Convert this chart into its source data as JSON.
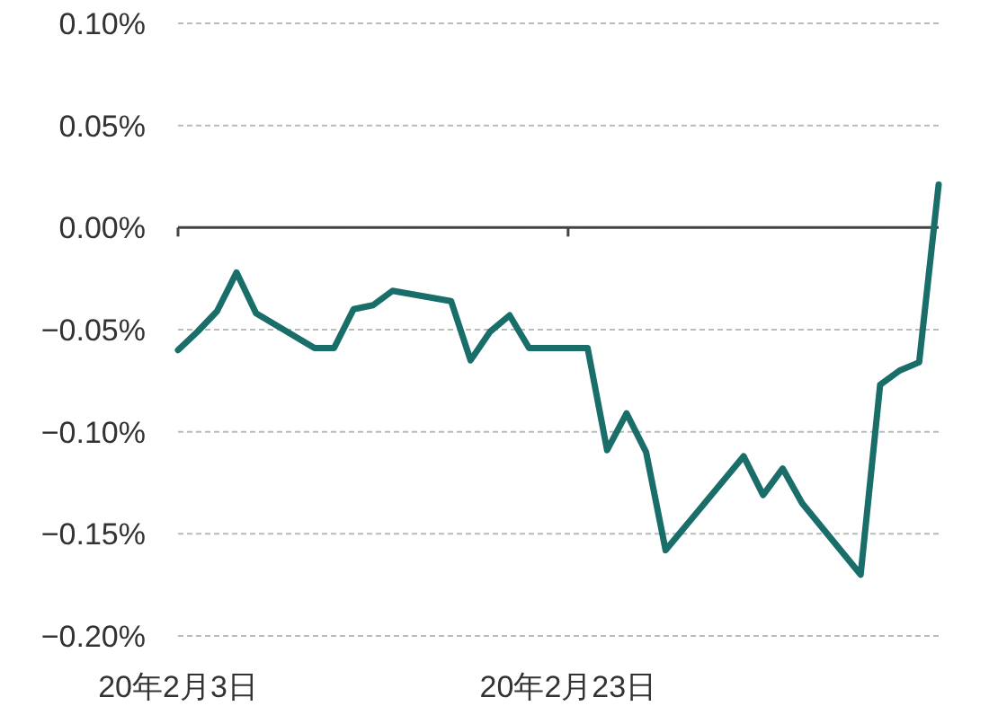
{
  "chart_data": {
    "type": "line",
    "x": [
      "--02-03",
      "--02-04",
      "--02-05",
      "--02-06",
      "--02-07",
      "--02-10",
      "--02-11",
      "--02-12",
      "--02-13",
      "--02-14",
      "--02-17",
      "--02-18",
      "--02-19",
      "--02-20",
      "--02-21",
      "--02-24",
      "--02-25",
      "--02-26",
      "--02-27",
      "--02-28",
      "--03-04",
      "--03-05",
      "--03-06",
      "--03-07",
      "--03-10",
      "--03-11",
      "--03-12",
      "--03-13",
      "--03-14"
    ],
    "series": [
      {
        "color": "#1a6e6a",
        "values": [
          -0.06,
          -0.051,
          -0.041,
          -0.022,
          -0.042,
          -0.059,
          -0.059,
          -0.04,
          -0.038,
          -0.031,
          -0.036,
          -0.065,
          -0.051,
          -0.043,
          -0.059,
          -0.059,
          -0.109,
          -0.091,
          -0.11,
          -0.158,
          -0.112,
          -0.131,
          -0.118,
          -0.135,
          -0.17,
          -0.077,
          -0.07,
          -0.066,
          0.021
        ]
      }
    ],
    "xlim": [
      "--02-03",
      "--03-14"
    ],
    "xticks": [
      {
        "value": "--02-03",
        "label": "20年2月3日"
      },
      {
        "value": "--02-23",
        "label": "20年2月23日"
      }
    ],
    "ylim": [
      -0.2,
      0.1
    ],
    "yticks": [
      {
        "value": 0.1,
        "label": "0.10%"
      },
      {
        "value": 0.05,
        "label": "0.05%"
      },
      {
        "value": 0,
        "label": "0.00%"
      },
      {
        "value": -0.05,
        "label": "−0.05%"
      },
      {
        "value": -0.1,
        "label": "−0.10%"
      },
      {
        "value": -0.15,
        "label": "−0.15%"
      },
      {
        "value": -0.2,
        "label": "−0.20%"
      }
    ],
    "grid": "y"
  }
}
